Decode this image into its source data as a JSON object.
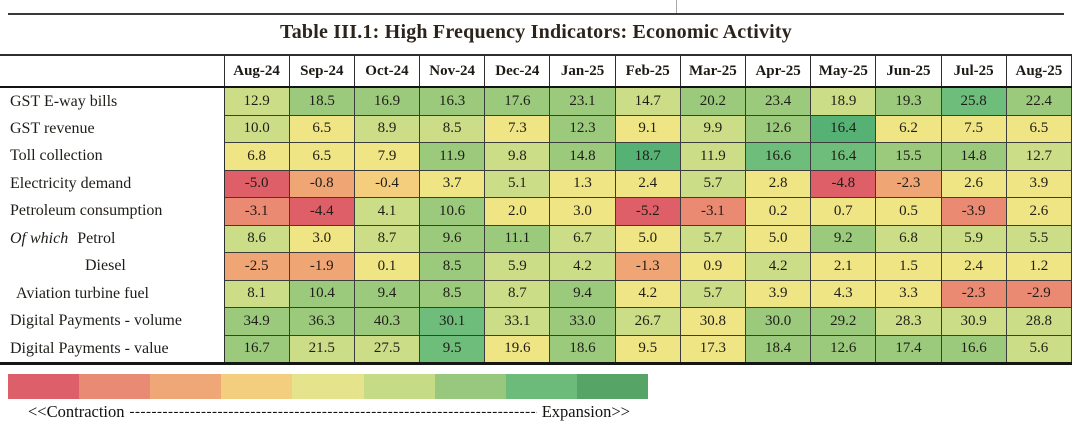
{
  "chart_data": {
    "type": "heatmap",
    "title": "Table III.1: High Frequency Indicators: Economic Activity",
    "columns": [
      "Aug-24",
      "Sep-24",
      "Oct-24",
      "Nov-24",
      "Dec-24",
      "Jan-25",
      "Feb-25",
      "Mar-25",
      "Apr-25",
      "May-25",
      "Jun-25",
      "Jul-25",
      "Aug-25"
    ],
    "rows": [
      {
        "label": "GST E-way bills",
        "prefix": "",
        "indent": 0,
        "values": [
          "12.9",
          "18.5",
          "16.9",
          "16.3",
          "17.6",
          "23.1",
          "14.7",
          "20.2",
          "23.4",
          "18.9",
          "19.3",
          "25.8",
          "22.4"
        ],
        "levels": [
          6,
          7,
          7,
          7,
          7,
          7,
          6,
          7,
          7,
          6,
          7,
          8,
          7
        ]
      },
      {
        "label": "GST revenue",
        "prefix": "",
        "indent": 0,
        "values": [
          "10.0",
          "6.5",
          "8.9",
          "8.5",
          "7.3",
          "12.3",
          "9.1",
          "9.9",
          "12.6",
          "16.4",
          "6.2",
          "7.5",
          "6.5"
        ],
        "levels": [
          6,
          5,
          6,
          6,
          5,
          7,
          5,
          6,
          7,
          9,
          5,
          5,
          5
        ]
      },
      {
        "label": "Toll collection",
        "prefix": "",
        "indent": 0,
        "values": [
          "6.8",
          "6.5",
          "7.9",
          "11.9",
          "9.8",
          "14.8",
          "18.7",
          "11.9",
          "16.6",
          "16.4",
          "15.5",
          "14.8",
          "12.7"
        ],
        "levels": [
          5,
          5,
          5,
          7,
          6,
          7,
          9,
          6,
          8,
          8,
          7,
          7,
          6
        ]
      },
      {
        "label": "Electricity demand",
        "prefix": "",
        "indent": 0,
        "values": [
          "-5.0",
          "-0.8",
          "-0.4",
          "3.7",
          "5.1",
          "1.3",
          "2.4",
          "5.7",
          "2.8",
          "-4.8",
          "-2.3",
          "2.6",
          "3.9"
        ],
        "levels": [
          1,
          3,
          4,
          5,
          6,
          5,
          5,
          6,
          5,
          1,
          3,
          5,
          5
        ]
      },
      {
        "label": "Petroleum consumption",
        "prefix": "",
        "indent": 0,
        "values": [
          "-3.1",
          "-4.4",
          "4.1",
          "10.6",
          "2.0",
          "3.0",
          "-5.2",
          "-3.1",
          "0.2",
          "0.7",
          "0.5",
          "-3.9",
          "2.6"
        ],
        "levels": [
          2,
          1,
          6,
          7,
          5,
          5,
          1,
          2,
          5,
          5,
          5,
          2,
          5
        ]
      },
      {
        "label": "Petrol",
        "prefix": "Of which",
        "indent": 0,
        "values": [
          "8.6",
          "3.0",
          "8.7",
          "9.6",
          "11.1",
          "6.7",
          "5.0",
          "5.7",
          "5.0",
          "9.2",
          "6.8",
          "5.9",
          "5.5"
        ],
        "levels": [
          6,
          5,
          6,
          7,
          7,
          6,
          5,
          6,
          5,
          7,
          6,
          6,
          6
        ]
      },
      {
        "label": "Diesel",
        "prefix": "",
        "indent": 2,
        "values": [
          "-2.5",
          "-1.9",
          "0.1",
          "8.5",
          "5.9",
          "4.2",
          "-1.3",
          "0.9",
          "4.2",
          "2.1",
          "1.5",
          "2.4",
          "1.2"
        ],
        "levels": [
          3,
          3,
          5,
          7,
          6,
          6,
          3,
          5,
          6,
          5,
          5,
          5,
          5
        ]
      },
      {
        "label": "Aviation turbine fuel",
        "prefix": "",
        "indent": 1,
        "values": [
          "8.1",
          "10.4",
          "9.4",
          "8.5",
          "8.7",
          "9.4",
          "4.2",
          "5.7",
          "3.9",
          "4.3",
          "3.3",
          "-2.3",
          "-2.9"
        ],
        "levels": [
          6,
          7,
          7,
          7,
          6,
          7,
          5,
          6,
          5,
          5,
          5,
          2,
          2
        ]
      },
      {
        "label": "Digital Payments - volume",
        "prefix": "",
        "indent": 0,
        "values": [
          "34.9",
          "36.3",
          "40.3",
          "30.1",
          "33.1",
          "33.0",
          "26.7",
          "30.8",
          "30.0",
          "29.2",
          "28.3",
          "30.9",
          "28.8"
        ],
        "levels": [
          7,
          7,
          7,
          8,
          6,
          7,
          6,
          5,
          7,
          7,
          6,
          6,
          6
        ]
      },
      {
        "label": "Digital Payments - value",
        "prefix": "",
        "indent": 0,
        "values": [
          "16.7",
          "21.5",
          "27.5",
          "9.5",
          "19.6",
          "18.6",
          "9.5",
          "17.3",
          "18.4",
          "12.6",
          "17.4",
          "16.6",
          "5.6"
        ],
        "levels": [
          7,
          6,
          6,
          8,
          5,
          7,
          5,
          5,
          7,
          7,
          7,
          7,
          6
        ]
      }
    ],
    "palette": [
      "#DF5F68",
      "#EA8A72",
      "#F0A674",
      "#F5CE7D",
      "#EFE584",
      "#CBDE87",
      "#9BCA7D",
      "#6FBD7B",
      "#55B274"
    ],
    "legend": {
      "segments": [
        "#DC5F69",
        "#E98A74",
        "#F0A777",
        "#F4CE7F",
        "#E5E48C",
        "#C6DB86",
        "#97C87E",
        "#6CBB7B",
        "#57A467"
      ],
      "contraction_label": "<<Contraction",
      "dashes": "--------------------------------------------------------------------------------------------------------------------------------------------------------",
      "expansion_label": "Expansion>>"
    }
  }
}
